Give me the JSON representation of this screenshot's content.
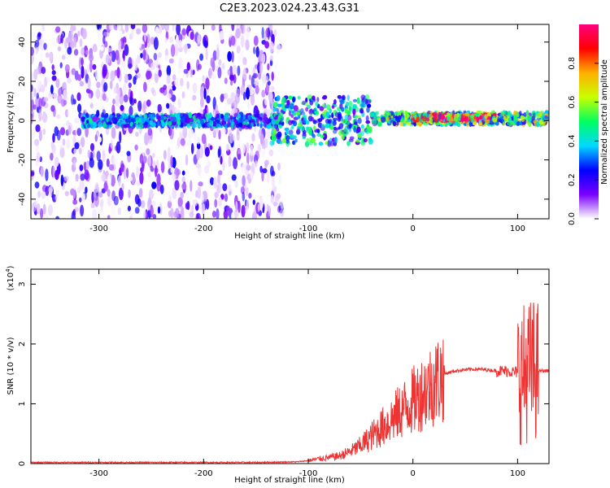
{
  "title": "C2E3.2023.024.23.43.G31",
  "chart_data": [
    {
      "type": "heatmap",
      "xlabel": "Height of straight line (km)",
      "ylabel": "Frequency (Hz)",
      "xlim": [
        -365,
        130
      ],
      "ylim": [
        -50,
        49
      ],
      "xticks": [
        -300,
        -200,
        -100,
        0,
        100
      ],
      "yticks": [
        -40,
        -20,
        0,
        20,
        40
      ],
      "colorbar": {
        "label": "Normalized spectral amplitude",
        "range": [
          0,
          1
        ],
        "ticks": [
          "0.0",
          "0.2",
          "0.4",
          "0.6",
          "0.8"
        ],
        "colors": [
          "#ffffff",
          "#7a00ff",
          "#0000ff",
          "#00d8ff",
          "#00ff60",
          "#c8ff00",
          "#ffb000",
          "#ff0000",
          "#ff0080"
        ]
      },
      "regions": [
        {
          "x": [
            -365,
            -125
          ],
          "frequency_band": [
            -50,
            49
          ],
          "level": 0.15
        },
        {
          "x": [
            -315,
            -125
          ],
          "frequency_band": [
            -3,
            3
          ],
          "level": 0.3
        },
        {
          "x": [
            -135,
            -40
          ],
          "frequency_band": [
            -12,
            12
          ],
          "level": 0.35
        },
        {
          "x": [
            -40,
            130
          ],
          "frequency_band": [
            -2,
            4
          ],
          "level": 0.45
        },
        {
          "x": [
            0,
            80
          ],
          "frequency_band": [
            0,
            3
          ],
          "level": 0.8
        }
      ]
    },
    {
      "type": "line",
      "xlabel": "Height of straight line (km)",
      "ylabel": "SNR (10 * v/v)",
      "y_exponent_label": "(x10",
      "y_exponent": "4",
      "y_exponent_close": ")",
      "xlim": [
        -365,
        130
      ],
      "ylim": [
        0,
        3.25
      ],
      "xticks": [
        -300,
        -200,
        -100,
        0,
        100
      ],
      "yticks": [
        0,
        1,
        2,
        3
      ],
      "color": "#ee3333",
      "series": [
        {
          "x": [
            -365,
            -300,
            -250,
            -200,
            -150,
            -110,
            -100,
            -90,
            -80,
            -70,
            -60,
            -50,
            -40,
            -30,
            -20,
            -10,
            0,
            10,
            20,
            30,
            40,
            50,
            60,
            70,
            80,
            90,
            100,
            105,
            110,
            115,
            120,
            130
          ],
          "y": [
            0.02,
            0.02,
            0.02,
            0.02,
            0.02,
            0.03,
            0.05,
            0.08,
            0.1,
            0.13,
            0.2,
            0.3,
            0.45,
            0.6,
            0.75,
            0.9,
            1.05,
            1.2,
            1.35,
            1.5,
            1.55,
            1.57,
            1.58,
            1.57,
            1.55,
            1.55,
            1.52,
            1.5,
            1.55,
            1.58,
            1.55,
            1.55
          ]
        }
      ]
    }
  ]
}
